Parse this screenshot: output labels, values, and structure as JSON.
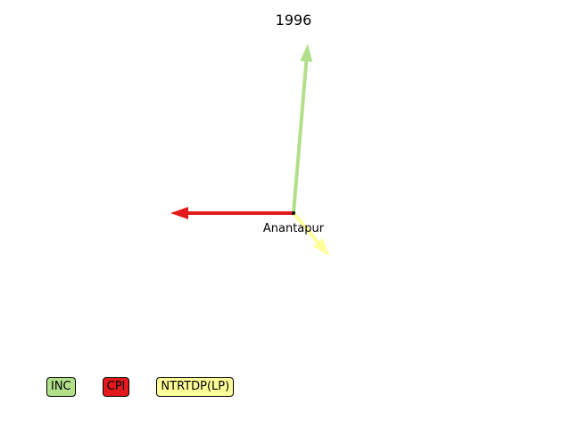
{
  "chart_data": {
    "type": "quiver",
    "title": "1996",
    "location": {
      "name": "Anantapur",
      "x": 0,
      "y": 0
    },
    "series": [
      {
        "name": "INC",
        "color": "#b2df8a",
        "dx": 0.16,
        "dy": 1.9
      },
      {
        "name": "CPI",
        "color": "#e31a1c",
        "dx": -1.38,
        "dy": 0.0
      },
      {
        "name": "NTRTDP(LP)",
        "color": "#ffff99",
        "dx": 0.4,
        "dy": -0.48
      }
    ],
    "legend_position": "bottom-left",
    "grid": false
  }
}
